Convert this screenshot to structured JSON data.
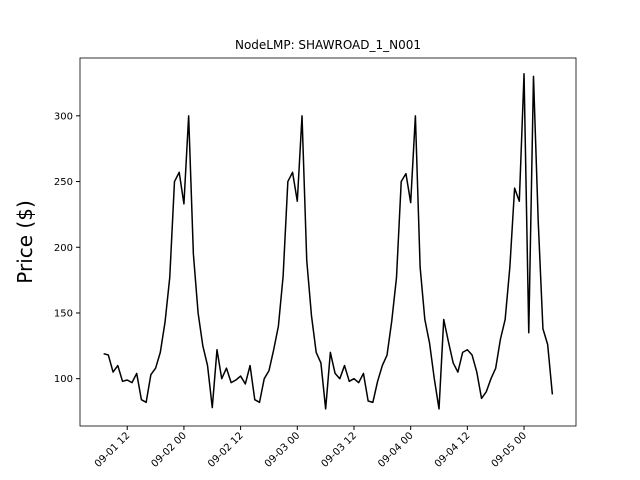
{
  "chart_data": {
    "type": "line",
    "title": "NodeLMP: SHAWROAD_1_N001",
    "y_label": "Price ($)",
    "x": [
      "09-01 07",
      "09-01 08",
      "09-01 09",
      "09-01 10",
      "09-01 11",
      "09-01 12",
      "09-01 13",
      "09-01 14",
      "09-01 15",
      "09-01 16",
      "09-01 17",
      "09-01 18",
      "09-01 19",
      "09-01 20",
      "09-01 21",
      "09-01 22",
      "09-01 23",
      "09-02 00",
      "09-02 01",
      "09-02 02",
      "09-02 03",
      "09-02 04",
      "09-02 05",
      "09-02 06",
      "09-02 07",
      "09-02 08",
      "09-02 09",
      "09-02 10",
      "09-02 11",
      "09-02 12",
      "09-02 13",
      "09-02 14",
      "09-02 15",
      "09-02 16",
      "09-02 17",
      "09-02 18",
      "09-02 19",
      "09-02 20",
      "09-02 21",
      "09-02 22",
      "09-02 23",
      "09-03 00",
      "09-03 01",
      "09-03 02",
      "09-03 03",
      "09-03 04",
      "09-03 05",
      "09-03 06",
      "09-03 07",
      "09-03 08",
      "09-03 09",
      "09-03 10",
      "09-03 11",
      "09-03 12",
      "09-03 13",
      "09-03 14",
      "09-03 15",
      "09-03 16",
      "09-03 17",
      "09-03 18",
      "09-03 19",
      "09-03 20",
      "09-03 21",
      "09-03 22",
      "09-03 23",
      "09-04 00",
      "09-04 01",
      "09-04 02",
      "09-04 03",
      "09-04 04",
      "09-04 05",
      "09-04 06",
      "09-04 07",
      "09-04 08",
      "09-04 09",
      "09-04 10",
      "09-04 11",
      "09-04 12",
      "09-04 13",
      "09-04 14",
      "09-04 15",
      "09-04 16",
      "09-04 17",
      "09-04 18",
      "09-04 19",
      "09-04 20",
      "09-04 21",
      "09-04 22",
      "09-04 23",
      "09-05 00",
      "09-05 01",
      "09-05 02",
      "09-05 03",
      "09-05 04",
      "09-05 05",
      "09-05 06"
    ],
    "series": [
      {
        "name": "SHAWROAD_1_N001",
        "color": "#000000",
        "values": [
          119,
          118,
          105,
          110,
          98,
          99,
          97,
          104,
          84,
          82,
          103,
          108,
          120,
          143,
          177,
          250,
          257,
          233,
          300,
          195,
          150,
          125,
          110,
          78,
          122,
          100,
          108,
          97,
          99,
          102,
          96,
          110,
          84,
          82,
          100,
          106,
          122,
          140,
          178,
          250,
          257,
          235,
          300,
          190,
          148,
          120,
          112,
          77,
          120,
          104,
          100,
          110,
          98,
          100,
          97,
          104,
          83,
          82,
          98,
          110,
          118,
          144,
          177,
          250,
          256,
          234,
          300,
          185,
          145,
          127,
          100,
          77,
          145,
          128,
          112,
          105,
          120,
          122,
          118,
          105,
          85,
          90,
          100,
          108,
          130,
          145,
          185,
          245,
          235,
          332,
          135,
          330,
          220,
          138,
          126,
          88
        ]
      }
    ],
    "xlim": [
      "09-01 02",
      "09-05 11"
    ],
    "xticks": [
      "09-01 12",
      "09-02 00",
      "09-02 12",
      "09-03 00",
      "09-03 12",
      "09-04 00",
      "09-04 12",
      "09-05 00"
    ],
    "ylim": [
      64,
      344
    ],
    "yticks": [
      100,
      150,
      200,
      250,
      300
    ]
  }
}
